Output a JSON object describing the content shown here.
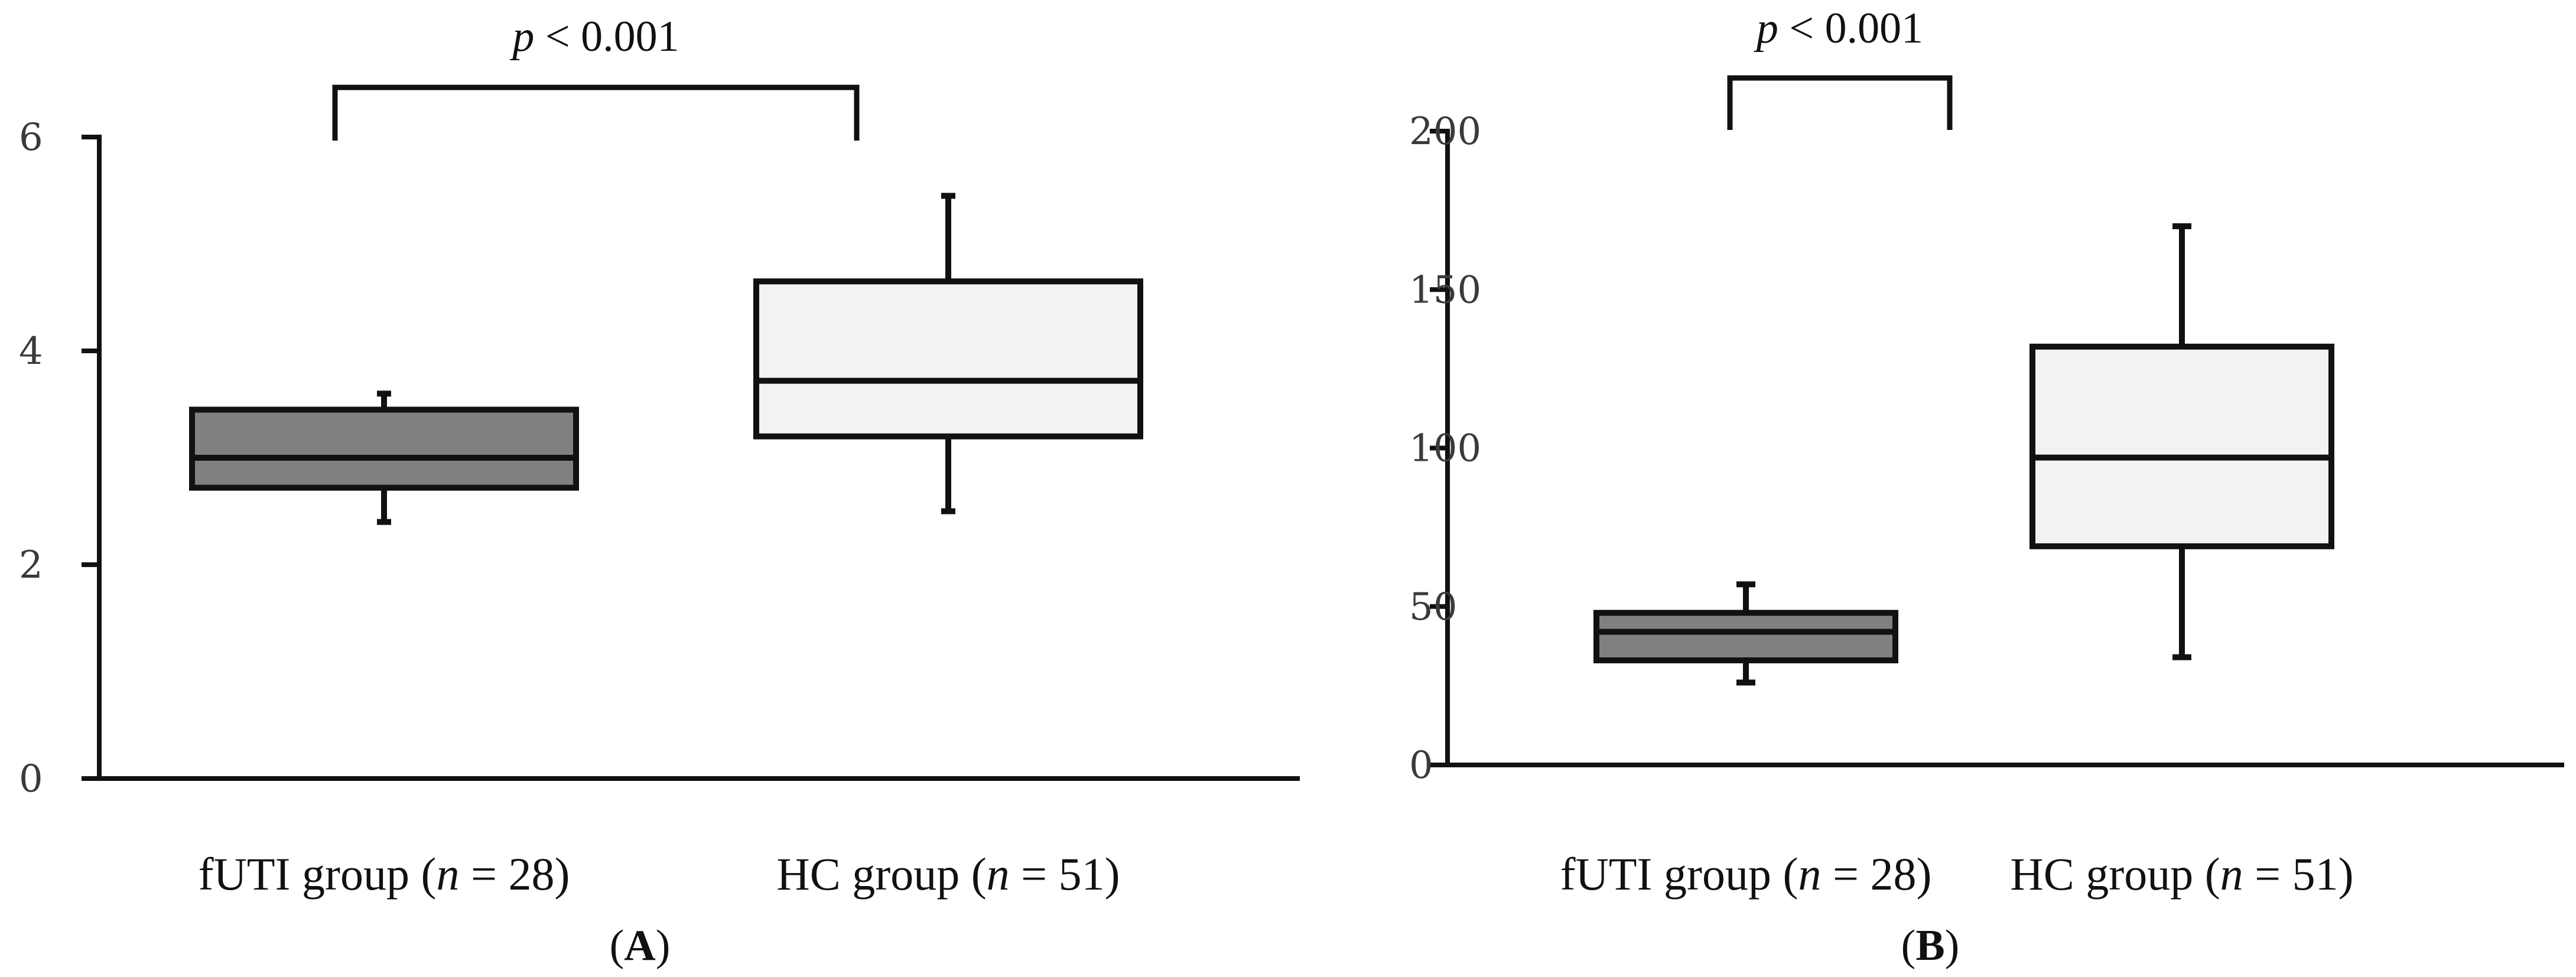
{
  "colors": {
    "fUTI": "#808080",
    "HC": "#f2f2f2",
    "ink": "#111111"
  },
  "chart_data": [
    {
      "type": "box",
      "panel": "A",
      "categories": [
        "fUTI group (n = 28)",
        "HC group (n = 51)"
      ],
      "category_parts": [
        {
          "pre": "fUTI group (",
          "n": "n",
          "post": " = 28)"
        },
        {
          "pre": "HC group (",
          "n": "n",
          "post": " = 51)"
        }
      ],
      "boxes": [
        {
          "min": 2.4,
          "q1": 2.72,
          "median": 3.0,
          "q3": 3.45,
          "max": 3.6
        },
        {
          "min": 2.5,
          "q1": 3.2,
          "median": 3.72,
          "q3": 4.65,
          "max": 5.45
        }
      ],
      "ylim": [
        0,
        6
      ],
      "yticks": [
        0,
        2,
        4,
        6
      ],
      "annotation": {
        "p": "p",
        "rest": " < 0.001"
      },
      "panel_label": {
        "open": "(",
        "letter": "A",
        "close": ")"
      }
    },
    {
      "type": "box",
      "panel": "B",
      "categories": [
        "fUTI group (n = 28)",
        "HC group (n = 51)"
      ],
      "category_parts": [
        {
          "pre": "fUTI group (",
          "n": "n",
          "post": " = 28)"
        },
        {
          "pre": "HC group (",
          "n": "n",
          "post": " = 51)"
        }
      ],
      "boxes": [
        {
          "min": 26,
          "q1": 33,
          "median": 42,
          "q3": 48,
          "max": 57
        },
        {
          "min": 34,
          "q1": 69,
          "median": 97,
          "q3": 132,
          "max": 170
        }
      ],
      "ylim": [
        0,
        200
      ],
      "yticks": [
        0,
        50,
        100,
        150,
        200
      ],
      "annotation": {
        "p": "p",
        "rest": " < 0.001"
      },
      "panel_label": {
        "open": "(",
        "letter": "B",
        "close": ")"
      }
    }
  ]
}
